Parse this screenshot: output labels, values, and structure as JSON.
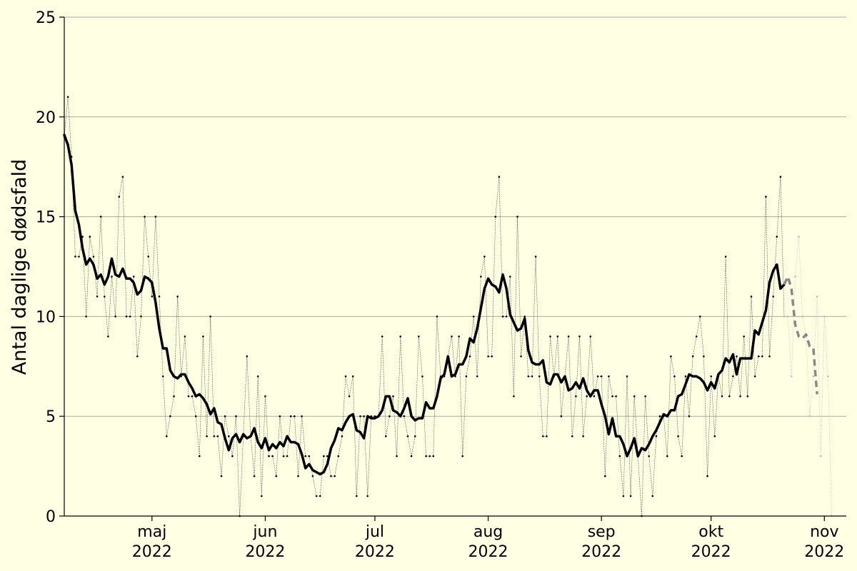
{
  "chart_data": {
    "type": "line",
    "ylabel": "Antal daglige dødsfald",
    "ylim": [
      0,
      25
    ],
    "xlim": [
      "2022-04-07",
      "2022-11-07"
    ],
    "grid": "horizontal",
    "colors": {
      "background": "#ffffe3",
      "daily": "#000000",
      "smoothed": "#000000",
      "provisional": "#888888",
      "grid": "#aaaaaa"
    },
    "yticks": [
      0,
      5,
      10,
      15,
      20,
      25
    ],
    "xticks": [
      {
        "date": "2022-05-01",
        "month": "maj",
        "year": "2022"
      },
      {
        "date": "2022-06-01",
        "month": "jun",
        "year": "2022"
      },
      {
        "date": "2022-07-01",
        "month": "jul",
        "year": "2022"
      },
      {
        "date": "2022-08-01",
        "month": "aug",
        "year": "2022"
      },
      {
        "date": "2022-09-01",
        "month": "sep",
        "year": "2022"
      },
      {
        "date": "2022-10-01",
        "month": "okt",
        "year": "2022"
      },
      {
        "date": "2022-11-01",
        "month": "nov",
        "year": "2022"
      }
    ],
    "series": [
      {
        "style": "dotted-with-markers",
        "start": "2022-04-07",
        "values": [
          19,
          21,
          18,
          13,
          13,
          14,
          10,
          14,
          13,
          11,
          15,
          11,
          9,
          12,
          10,
          16,
          17,
          10,
          10,
          12,
          8,
          10,
          15,
          13,
          11,
          15,
          11,
          7,
          4,
          5,
          6,
          11,
          7,
          9,
          6,
          6,
          5,
          3,
          9,
          4,
          10,
          4,
          4,
          2,
          5,
          4,
          3,
          5,
          0,
          4,
          8,
          4,
          2,
          7,
          1,
          6,
          3,
          3,
          2,
          5,
          3,
          3,
          5,
          5,
          2,
          5,
          3,
          3,
          2,
          1,
          1,
          3,
          3,
          2,
          2,
          3,
          4,
          7,
          6,
          7,
          1,
          5,
          5,
          1,
          5,
          5,
          5,
          9,
          4,
          5,
          6,
          3,
          9,
          5,
          4,
          3,
          4,
          9,
          7,
          3,
          3,
          3,
          10,
          7,
          7,
          8,
          9,
          7,
          9,
          3,
          7,
          8,
          10,
          7,
          12,
          13,
          8,
          8,
          15,
          17,
          10,
          10,
          12,
          6,
          15,
          8,
          10,
          7,
          7,
          13,
          7,
          4,
          4,
          9,
          7,
          9,
          5,
          7,
          9,
          4,
          6,
          9,
          4,
          6,
          9,
          6,
          7,
          7,
          2,
          7,
          6,
          6,
          3,
          1,
          7,
          1,
          6,
          3,
          0,
          6,
          3,
          1,
          4,
          5,
          5,
          3,
          8,
          7,
          4,
          3,
          7,
          5,
          8,
          9,
          10,
          8,
          2,
          7,
          4,
          7,
          6,
          13,
          6,
          7,
          8,
          6,
          9,
          6,
          11,
          7,
          8,
          8,
          16,
          8,
          11,
          14,
          17,
          10,
          10,
          7,
          12,
          14,
          10,
          9,
          5,
          7,
          11,
          3,
          10,
          7,
          0
        ],
        "provisional_from": "2022-10-21"
      },
      {
        "style": "solid-thick",
        "start": "2022-04-07",
        "values": [
          19.1,
          18.6,
          17.6,
          15.3,
          14.6,
          13.4,
          12.6,
          12.9,
          12.6,
          11.9,
          12.1,
          11.6,
          12.0,
          12.9,
          12.1,
          12.0,
          12.4,
          11.9,
          11.9,
          11.7,
          11.1,
          11.3,
          12.0,
          11.9,
          11.7,
          10.7,
          9.4,
          8.4,
          8.4,
          7.3,
          7.0,
          6.9,
          7.1,
          7.1,
          6.7,
          6.4,
          6.0,
          6.1,
          5.9,
          5.6,
          5.1,
          5.4,
          4.7,
          4.6,
          3.9,
          3.3,
          3.9,
          4.1,
          3.7,
          4.1,
          3.9,
          4.0,
          4.4,
          3.7,
          3.4,
          3.9,
          3.3,
          3.6,
          3.4,
          3.7,
          3.5,
          4.0,
          3.7,
          3.7,
          3.6,
          3.1,
          2.4,
          2.6,
          2.3,
          2.2,
          2.1,
          2.2,
          2.6,
          3.4,
          3.8,
          4.4,
          4.3,
          4.7,
          5.0,
          5.1,
          4.3,
          4.2,
          3.9,
          5.0,
          4.9,
          4.9,
          5.0,
          5.3,
          6.0,
          6.0,
          5.3,
          5.2,
          5.0,
          5.4,
          5.9,
          5.0,
          4.8,
          4.9,
          4.9,
          5.7,
          5.4,
          5.4,
          6.0,
          6.9,
          7.1,
          8.0,
          7.0,
          7.1,
          7.6,
          7.6,
          8.0,
          8.9,
          8.7,
          9.4,
          10.4,
          11.4,
          11.9,
          11.6,
          11.5,
          11.2,
          12.1,
          11.4,
          10.1,
          9.7,
          9.3,
          9.4,
          9.9,
          8.3,
          7.7,
          7.6,
          7.6,
          7.8,
          6.7,
          6.6,
          7.1,
          7.1,
          6.7,
          7.0,
          6.3,
          6.4,
          6.7,
          6.4,
          6.9,
          6.3,
          6.0,
          6.3,
          6.3,
          5.6,
          5.0,
          4.1,
          4.9,
          4.0,
          4.0,
          3.6,
          3.0,
          3.4,
          3.9,
          3.0,
          3.4,
          3.3,
          3.6,
          4.0,
          4.3,
          4.7,
          5.1,
          5.0,
          5.3,
          5.3,
          6.0,
          6.1,
          6.6,
          7.1,
          7.0,
          7.0,
          6.9,
          6.7,
          6.3,
          6.7,
          6.4,
          7.1,
          7.3,
          7.9,
          7.7,
          8.1,
          7.1,
          7.9,
          7.9,
          7.9,
          7.9,
          9.3,
          9.1,
          9.7,
          10.3,
          11.7,
          12.3,
          12.6,
          11.4,
          11.6,
          12.0,
          11.4,
          9.6,
          9.0,
          8.9,
          9.1,
          8.5,
          8.4,
          6.1
        ],
        "provisional_from": "2022-10-21"
      }
    ]
  }
}
